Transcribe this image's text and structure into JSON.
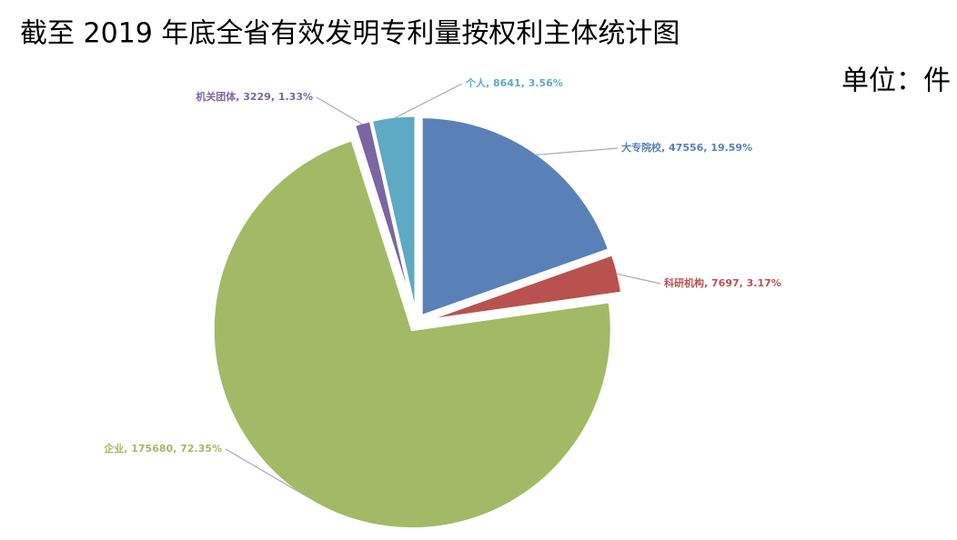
{
  "chart_data": {
    "type": "pie",
    "title": "截至 2019 年底全省有效发明专利量按权利主体统计图",
    "subtitle": "单位：件",
    "values": [
      47556,
      7697,
      175680,
      3229,
      8641
    ],
    "value_labels": [
      "大专院校, 47556, 19.59%",
      "科研机构, 7697, 3.17%",
      "企业, 175680, 72.35%",
      "机关团体, 3229, 1.33%",
      "个人, 8641, 3.56%"
    ],
    "colors": [
      "#5a80b8",
      "#b9524e",
      "#a2ba65",
      "#7b65a2",
      "#5ea9c4"
    ]
  }
}
